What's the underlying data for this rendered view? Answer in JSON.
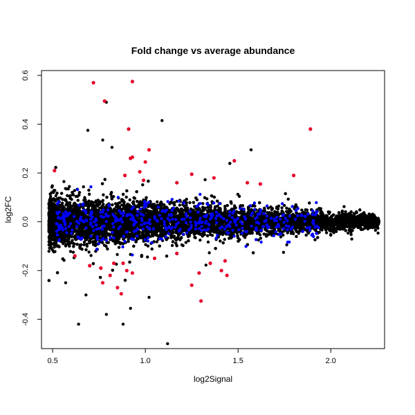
{
  "chart_data": {
    "type": "scatter",
    "title": "Fold change vs average abundance",
    "xlabel": "log2Signal",
    "ylabel": "log2FC",
    "xlim": [
      0.44,
      2.29
    ],
    "ylim": [
      -0.52,
      0.62
    ],
    "x_ticks": [
      0.5,
      1.0,
      1.5,
      2.0
    ],
    "x_tick_labels": [
      "0.5",
      "1.0",
      "1.5",
      "2.0"
    ],
    "y_ticks": [
      -0.4,
      -0.2,
      0.0,
      0.2,
      0.4,
      0.6
    ],
    "y_tick_labels": [
      "-0.4",
      "-0.2",
      "0.0",
      "0.2",
      "0.4",
      "0.6"
    ],
    "grid": false,
    "legend": "none",
    "colors": {
      "default": "#000000",
      "blue": "#0000ff",
      "red": "#e8002a"
    },
    "cloud": {
      "x_range": [
        0.48,
        2.26
      ],
      "approx_points": 9000,
      "description_note": ""
    },
    "highlighted_red": [
      [
        0.72,
        0.57
      ],
      [
        0.93,
        0.575
      ],
      [
        0.78,
        0.495
      ],
      [
        0.91,
        0.38
      ],
      [
        1.89,
        0.38
      ],
      [
        1.02,
        0.295
      ],
      [
        0.93,
        0.265
      ],
      [
        0.92,
        0.26
      ],
      [
        1.0,
        0.245
      ],
      [
        1.48,
        0.25
      ],
      [
        0.51,
        0.21
      ],
      [
        0.97,
        0.205
      ],
      [
        0.89,
        0.19
      ],
      [
        1.25,
        0.195
      ],
      [
        1.37,
        0.18
      ],
      [
        1.8,
        0.19
      ],
      [
        1.55,
        0.16
      ],
      [
        1.62,
        0.155
      ],
      [
        1.17,
        0.16
      ],
      [
        0.99,
        0.17
      ],
      [
        1.17,
        -0.13
      ],
      [
        1.05,
        -0.15
      ],
      [
        0.83,
        -0.17
      ],
      [
        0.88,
        -0.17
      ],
      [
        0.76,
        -0.19
      ],
      [
        0.9,
        -0.2
      ],
      [
        0.93,
        -0.21
      ],
      [
        0.81,
        -0.22
      ],
      [
        0.77,
        -0.25
      ],
      [
        0.85,
        -0.27
      ],
      [
        0.87,
        -0.295
      ],
      [
        1.43,
        -0.16
      ],
      [
        1.35,
        -0.17
      ],
      [
        1.41,
        -0.2
      ],
      [
        1.44,
        -0.22
      ],
      [
        1.29,
        -0.21
      ],
      [
        1.25,
        -0.26
      ],
      [
        1.3,
        -0.325
      ],
      [
        0.62,
        -0.14
      ],
      [
        0.7,
        -0.18
      ]
    ],
    "highlighted_blue_count": 420
  }
}
